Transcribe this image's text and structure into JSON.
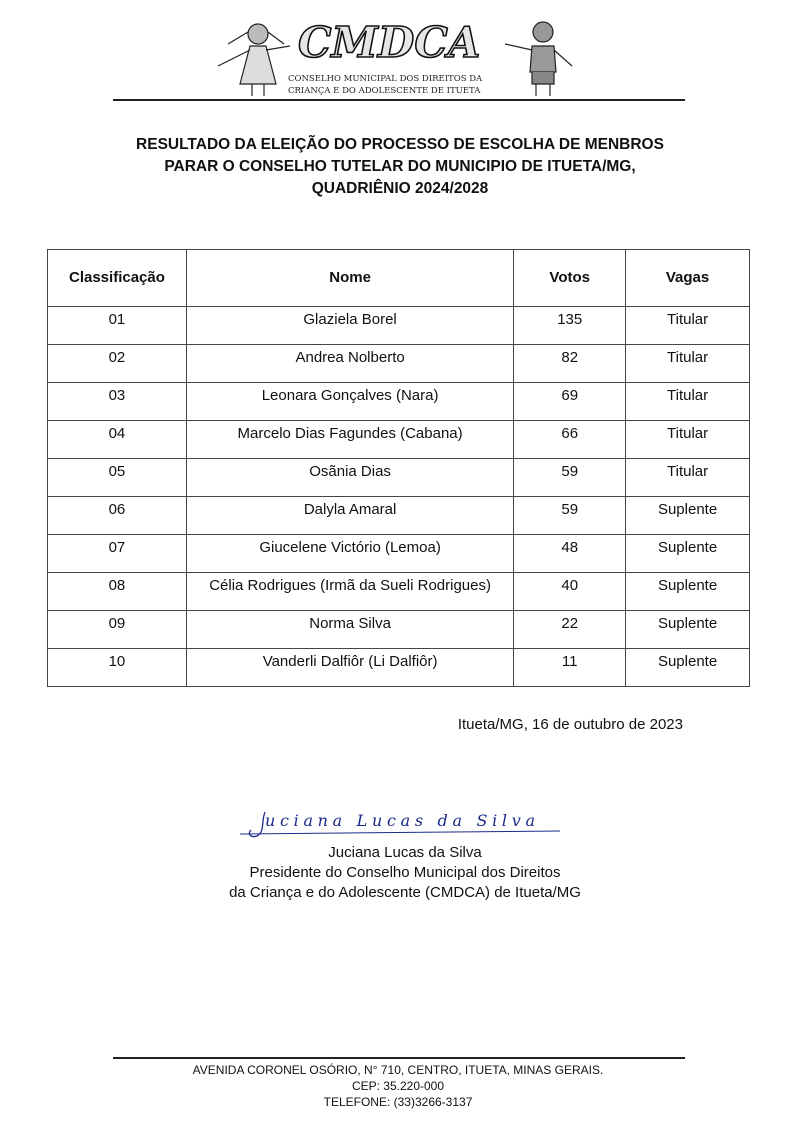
{
  "header": {
    "logo_text": "CMDCA",
    "logo_subtitle_line1": "CONSELHO MUNICIPAL DOS DIREITOS DA",
    "logo_subtitle_line2": "CRIANÇA E DO ADOLESCENTE DE ITUETA"
  },
  "title": {
    "line1": "RESULTADO DA ELEIÇÃO DO PROCESSO DE ESCOLHA DE MENBROS",
    "line2": "PARAR O CONSELHO TUTELAR DO MUNICIPIO DE ITUETA/MG,",
    "line3": "QUADRIÊNIO 2024/2028"
  },
  "table": {
    "columns": [
      "Classificação",
      "Nome",
      "Votos",
      "Vagas"
    ],
    "rows": [
      [
        "01",
        "Glaziela Borel",
        "135",
        "Titular"
      ],
      [
        "02",
        "Andrea Nolberto",
        "82",
        "Titular"
      ],
      [
        "03",
        "Leonara Gonçalves (Nara)",
        "69",
        "Titular"
      ],
      [
        "04",
        "Marcelo Dias Fagundes (Cabana)",
        "66",
        "Titular"
      ],
      [
        "05",
        "Osãnia Dias",
        "59",
        "Titular"
      ],
      [
        "06",
        "Dalyla Amaral",
        "59",
        "Suplente"
      ],
      [
        "07",
        "Giucelene Victório (Lemoa)",
        "48",
        "Suplente"
      ],
      [
        "08",
        "Célia Rodrigues (Irmã da Sueli Rodrigues)",
        "40",
        "Suplente"
      ],
      [
        "09",
        "Norma Silva",
        "22",
        "Suplente"
      ],
      [
        "10",
        "Vanderli Dalfiôr (Li Dalfiôr)",
        "11",
        "Suplente"
      ]
    ]
  },
  "date_line": "Itueta/MG, 16 de outubro de 2023",
  "signature": {
    "handwritten": "Juciana Lucas da Silva",
    "name": "Juciana Lucas da Silva",
    "role_line1": "Presidente do Conselho Municipal dos Direitos",
    "role_line2": "da Criança e do Adolescente (CMDCA) de Itueta/MG",
    "ink_color": "#1a2a8a"
  },
  "footer": {
    "address": "AVENIDA CORONEL OSÓRIO, N° 710, CENTRO, ITUETA, MINAS GERAIS.",
    "cep": "CEP: 35.220-000",
    "phone": "TELEFONE: (33)3266-3137"
  }
}
